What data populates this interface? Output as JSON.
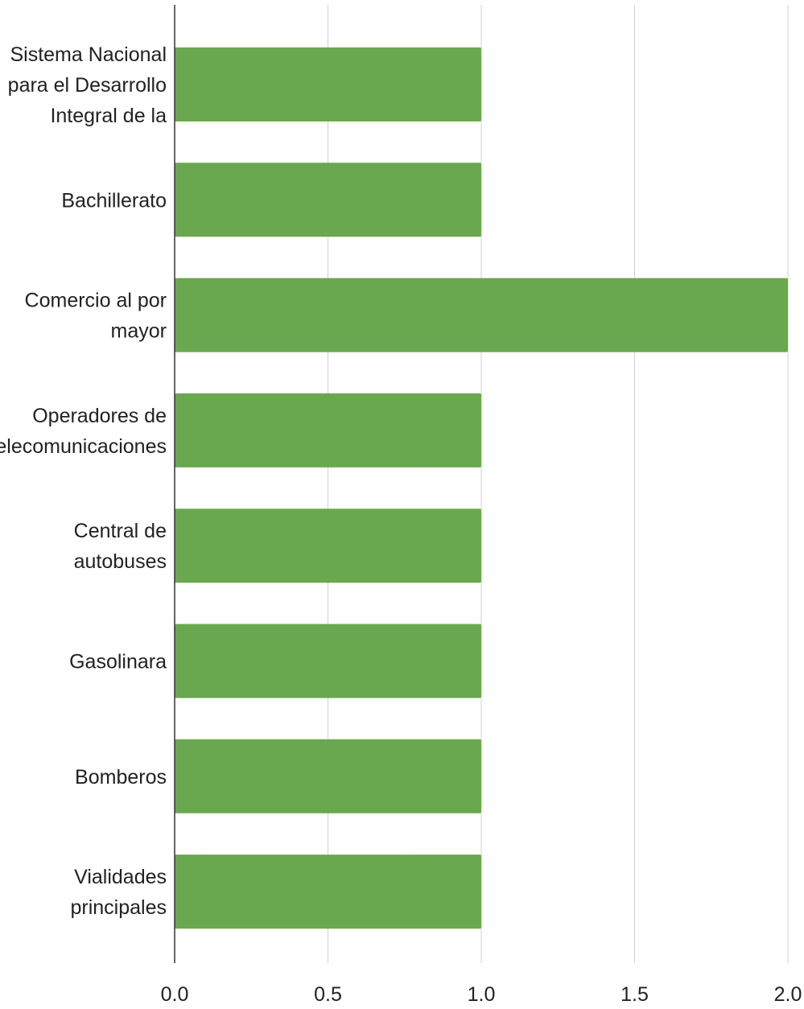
{
  "chart_data": {
    "type": "bar",
    "orientation": "horizontal",
    "title": "",
    "xlabel": "",
    "ylabel": "",
    "categories": [
      [
        "Sistema Nacional",
        "para el Desarrollo",
        "Integral de la"
      ],
      [
        "Bachillerato"
      ],
      [
        "Comercio al por",
        "mayor"
      ],
      [
        "Operadores de",
        "telecomunicaciones"
      ],
      [
        "Central de",
        "autobuses"
      ],
      [
        "Gasolinara"
      ],
      [
        "Bomberos"
      ],
      [
        "Vialidades",
        "principales"
      ]
    ],
    "values": [
      1,
      1,
      2,
      1,
      1,
      1,
      1,
      1
    ],
    "xlim": [
      0,
      2
    ],
    "xticks": [
      "0.0",
      "0.5",
      "1.0",
      "1.5",
      "2.0"
    ],
    "grid": true,
    "bar_color": "#6aa84f",
    "gridline_color": "#d0d0d0",
    "axis_color": "#333333"
  }
}
